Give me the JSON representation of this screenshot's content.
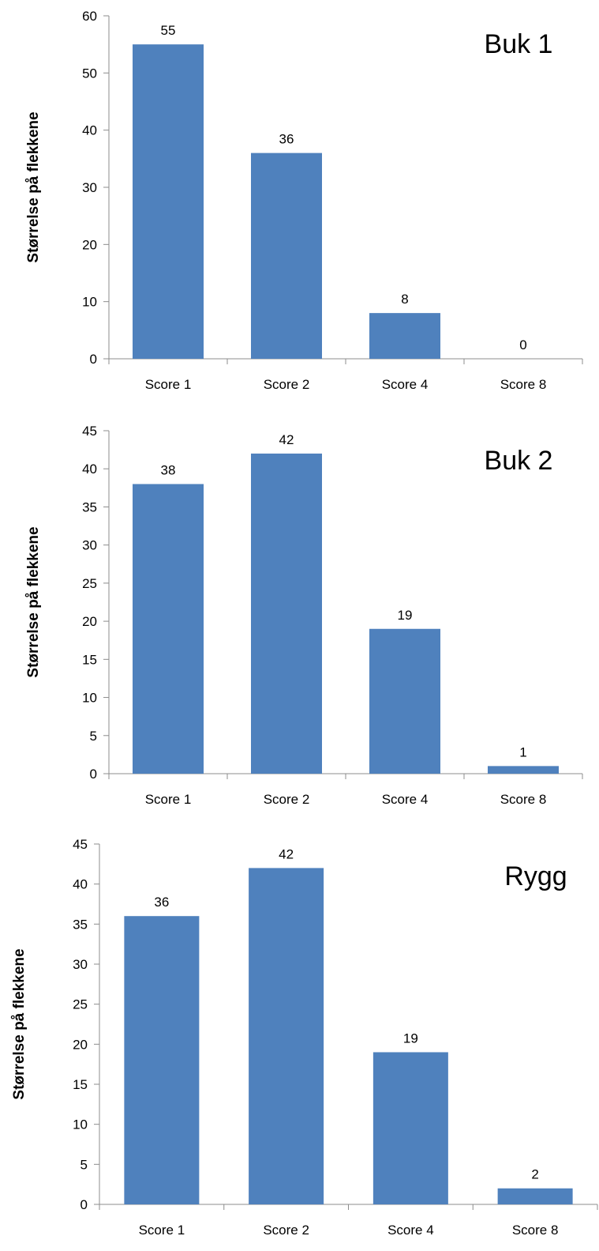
{
  "chart_data": [
    {
      "type": "bar",
      "title": "Buk 1",
      "xlabel": "",
      "ylabel": "Størrelse på flekkene",
      "categories": [
        "Score 1",
        "Score 2",
        "Score 4",
        "Score 8"
      ],
      "values": [
        55,
        36,
        8,
        0
      ],
      "ylim": [
        0,
        60
      ],
      "yticks": [
        0,
        10,
        20,
        30,
        40,
        50,
        60
      ],
      "grid": false,
      "bar_color": "#4f81bd"
    },
    {
      "type": "bar",
      "title": "Buk 2",
      "xlabel": "",
      "ylabel": "Størrelse på flekkene",
      "categories": [
        "Score 1",
        "Score 2",
        "Score 4",
        "Score 8"
      ],
      "values": [
        38,
        42,
        19,
        1
      ],
      "ylim": [
        0,
        45
      ],
      "yticks": [
        0,
        5,
        10,
        15,
        20,
        25,
        30,
        35,
        40,
        45
      ],
      "grid": false,
      "bar_color": "#4f81bd"
    },
    {
      "type": "bar",
      "title": "Rygg",
      "xlabel": "",
      "ylabel": "Størrelse på flekkene",
      "categories": [
        "Score 1",
        "Score 2",
        "Score 4",
        "Score 8"
      ],
      "values": [
        36,
        42,
        19,
        2
      ],
      "ylim": [
        0,
        45
      ],
      "yticks": [
        0,
        5,
        10,
        15,
        20,
        25,
        30,
        35,
        40,
        45
      ],
      "grid": false,
      "bar_color": "#4f81bd"
    }
  ]
}
